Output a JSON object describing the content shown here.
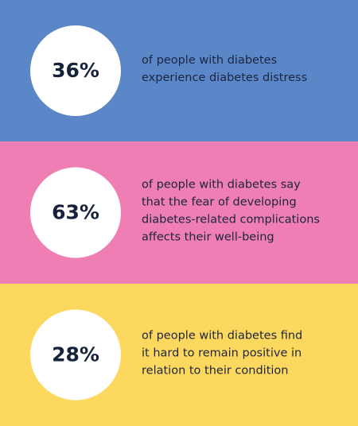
{
  "panels": [
    {
      "color": "#5b87c8",
      "stat": "36%",
      "lines": [
        "of people with diabetes",
        "experience diabetes distress"
      ]
    },
    {
      "color": "#ee7eb3",
      "stat": "63%",
      "lines": [
        "of people with diabetes say",
        "that the fear of developing",
        "diabetes-related complications",
        "affects their well-being"
      ]
    },
    {
      "color": "#fdd85e",
      "stat": "28%",
      "lines": [
        "of people with diabetes find",
        "it hard to remain positive in",
        "relation to their condition"
      ]
    }
  ]
}
